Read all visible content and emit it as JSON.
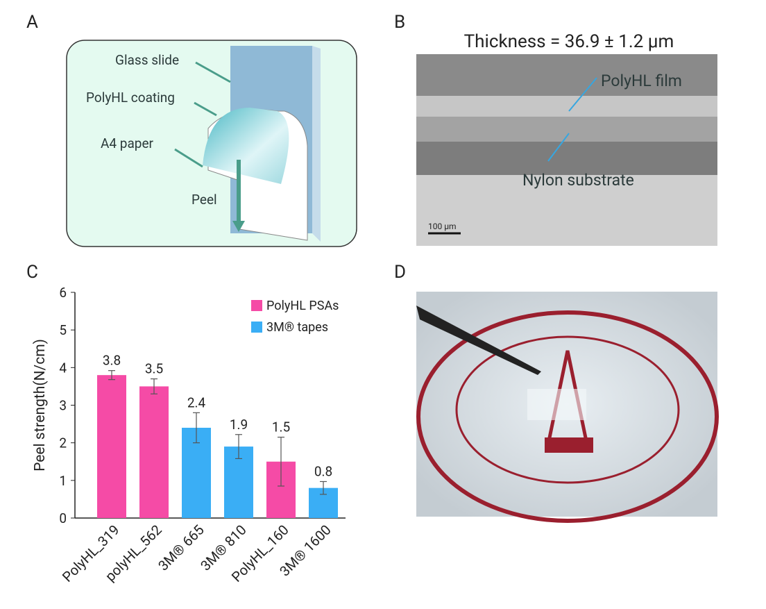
{
  "panels": {
    "A": {
      "label": "A",
      "labels": [
        "Glass slide",
        "PolyHL coating",
        "A4 paper",
        "Peel"
      ]
    },
    "B": {
      "label": "B",
      "title": "Thickness = 36.9 ± 1.2 μm",
      "annotations": [
        "PolyHL film",
        "Nylon substrate"
      ],
      "scale_bar": "100 μm"
    },
    "D": {
      "label": "D"
    }
  },
  "chart_data": {
    "type": "bar",
    "panel_label": "C",
    "ylabel": "Peel strength(N/cm)",
    "categories": [
      "PolyHL_319",
      "polyHL_562",
      "3M® 665",
      "3M® 810",
      "PolyHL_160",
      "3M® 1600"
    ],
    "series": [
      {
        "name": "PolyHL PSAs",
        "color": "#f54ba6",
        "values": [
          3.8,
          3.5,
          null,
          null,
          1.5,
          null
        ],
        "errors": [
          0.12,
          0.2,
          null,
          null,
          0.65,
          null
        ]
      },
      {
        "name": "3M® tapes",
        "color": "#3aaef5",
        "values": [
          null,
          null,
          2.4,
          1.9,
          null,
          0.8
        ],
        "errors": [
          null,
          null,
          0.4,
          0.32,
          null,
          0.17
        ]
      }
    ],
    "ylim": [
      0,
      6
    ],
    "yticks": [
      0,
      1,
      2,
      3,
      4,
      5,
      6
    ],
    "grid": false,
    "legend": "top-right"
  }
}
